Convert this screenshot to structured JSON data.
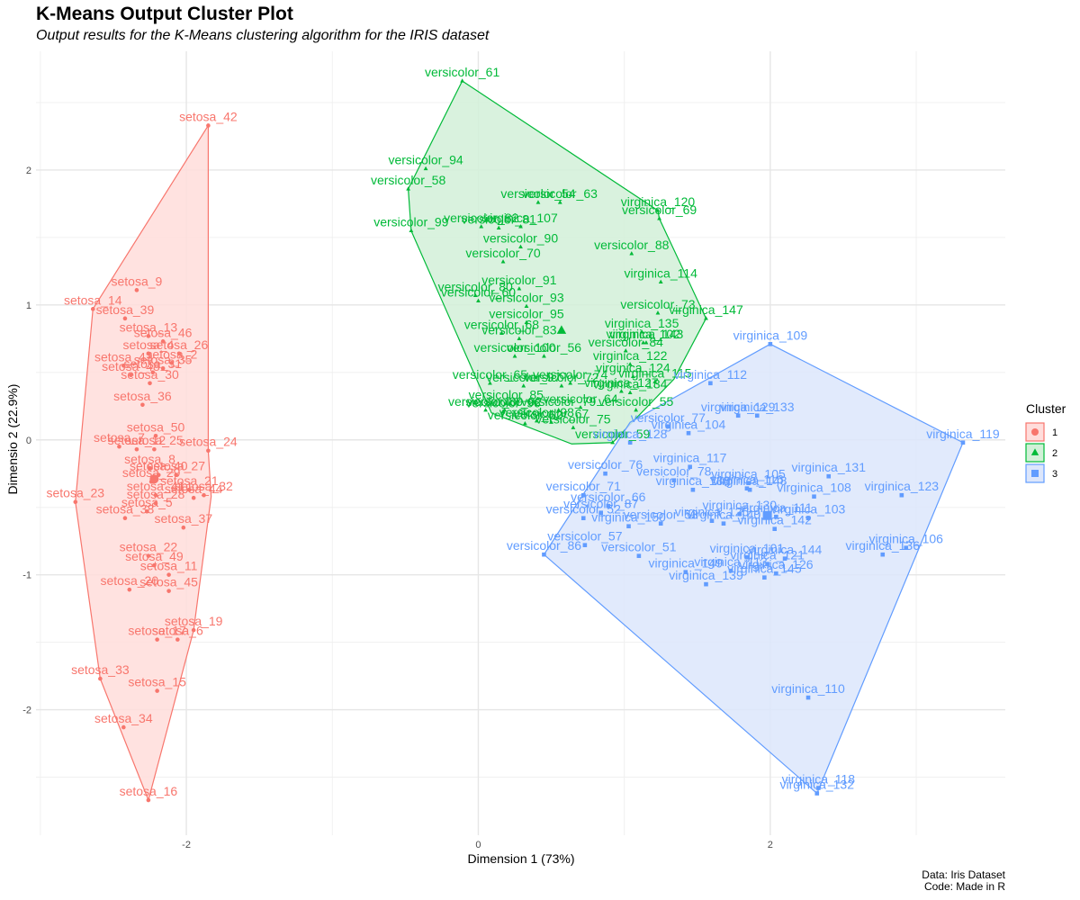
{
  "title": "K-Means Output Cluster Plot",
  "subtitle": "Output results for the K-Means clustering algorithm for the IRIS dataset",
  "caption": [
    "Data: Iris Dataset",
    "Code: Made in R"
  ],
  "chart_data": {
    "type": "scatter",
    "xlabel": "Dimension 1 (73%)",
    "ylabel": "Dimensio 2 (22.9%)",
    "xlim": [
      -3.03,
      3.61
    ],
    "ylim": [
      -2.93,
      2.88
    ],
    "xticks": [
      -2,
      0,
      2
    ],
    "yticks": [
      -2,
      -1,
      0,
      1,
      2
    ],
    "grid": true,
    "legend": {
      "title": "Cluster",
      "position": "right"
    },
    "clusters": [
      {
        "name": "1",
        "color": "#F8766D",
        "fill": "#FFDDDB",
        "shape": "circle",
        "centroid": [
          -2.22,
          -0.29
        ],
        "hull": [
          [
            -1.85,
            2.33
          ],
          [
            -2.64,
            0.97
          ],
          [
            -2.76,
            -0.46
          ],
          [
            -2.59,
            -1.77
          ],
          [
            -2.26,
            -2.67
          ],
          [
            -1.95,
            -1.41
          ],
          [
            -1.83,
            -0.42
          ],
          [
            -1.85,
            -0.08
          ]
        ],
        "points": [
          {
            "label": "setosa_42",
            "x": -1.85,
            "y": 2.33
          },
          {
            "label": "setosa_9",
            "x": -2.34,
            "y": 1.11
          },
          {
            "label": "setosa_14",
            "x": -2.64,
            "y": 0.97
          },
          {
            "label": "setosa_39",
            "x": -2.42,
            "y": 0.9
          },
          {
            "label": "setosa_13",
            "x": -2.26,
            "y": 0.77
          },
          {
            "label": "setosa_46",
            "x": -2.16,
            "y": 0.73
          },
          {
            "label": "setosa_26",
            "x": -2.05,
            "y": 0.64
          },
          {
            "label": "setosa_4",
            "x": -2.26,
            "y": 0.64
          },
          {
            "label": "setosa_43",
            "x": -2.43,
            "y": 0.55
          },
          {
            "label": "setosa_2",
            "x": -2.1,
            "y": 0.57
          },
          {
            "label": "setosa_35",
            "x": -2.16,
            "y": 0.53
          },
          {
            "label": "setosa_31",
            "x": -2.23,
            "y": 0.5
          },
          {
            "label": "setosa_48",
            "x": -2.38,
            "y": 0.48
          },
          {
            "label": "setosa_30",
            "x": -2.25,
            "y": 0.42
          },
          {
            "label": "setosa_36",
            "x": -2.3,
            "y": 0.26
          },
          {
            "label": "setosa_50",
            "x": -2.21,
            "y": 0.03
          },
          {
            "label": "setosa_7",
            "x": -2.46,
            "y": -0.05
          },
          {
            "label": "setosa_12",
            "x": -2.34,
            "y": -0.07
          },
          {
            "label": "setosa_25",
            "x": -2.22,
            "y": -0.07
          },
          {
            "label": "setosa_24",
            "x": -1.85,
            "y": -0.08
          },
          {
            "label": "setosa_8",
            "x": -2.25,
            "y": -0.21
          },
          {
            "label": "setosa_40",
            "x": -2.19,
            "y": -0.26
          },
          {
            "label": "setosa_27",
            "x": -2.07,
            "y": -0.26
          },
          {
            "label": "setosa_29",
            "x": -2.24,
            "y": -0.31
          },
          {
            "label": "setosa_21",
            "x": -1.98,
            "y": -0.37
          },
          {
            "label": "setosa_32",
            "x": -1.88,
            "y": -0.41
          },
          {
            "label": "setosa_23",
            "x": -2.76,
            "y": -0.46
          },
          {
            "label": "setosa_41",
            "x": -2.21,
            "y": -0.41
          },
          {
            "label": "setosa_44",
            "x": -1.95,
            "y": -0.43
          },
          {
            "label": "setosa_28",
            "x": -2.21,
            "y": -0.47
          },
          {
            "label": "setosa_38",
            "x": -2.42,
            "y": -0.58
          },
          {
            "label": "setosa_5",
            "x": -2.27,
            "y": -0.53
          },
          {
            "label": "setosa_37",
            "x": -2.02,
            "y": -0.65
          },
          {
            "label": "setosa_22",
            "x": -2.26,
            "y": -0.86
          },
          {
            "label": "setosa_49",
            "x": -2.22,
            "y": -0.93
          },
          {
            "label": "setosa_11",
            "x": -2.12,
            "y": -1.0
          },
          {
            "label": "setosa_20",
            "x": -2.39,
            "y": -1.11
          },
          {
            "label": "setosa_45",
            "x": -2.12,
            "y": -1.12
          },
          {
            "label": "setosa_19",
            "x": -1.95,
            "y": -1.41
          },
          {
            "label": "setosa_17",
            "x": -2.2,
            "y": -1.48
          },
          {
            "label": "setosa_6",
            "x": -2.06,
            "y": -1.48
          },
          {
            "label": "setosa_33",
            "x": -2.59,
            "y": -1.77
          },
          {
            "label": "setosa_15",
            "x": -2.2,
            "y": -1.86
          },
          {
            "label": "setosa_34",
            "x": -2.43,
            "y": -2.13
          },
          {
            "label": "setosa_16",
            "x": -2.26,
            "y": -2.67
          }
        ]
      },
      {
        "name": "2",
        "color": "#00BA38",
        "fill": "#D2F0D8",
        "shape": "triangle",
        "centroid": [
          0.57,
          0.81
        ],
        "hull": [
          [
            -0.11,
            2.66
          ],
          [
            -0.48,
            1.86
          ],
          [
            -0.46,
            1.55
          ],
          [
            0.09,
            0.2
          ],
          [
            0.64,
            -0.03
          ],
          [
            0.92,
            -0.02
          ],
          [
            1.34,
            0.45
          ],
          [
            1.56,
            0.9
          ],
          [
            1.24,
            1.64
          ],
          [
            1.23,
            1.7
          ]
        ],
        "points": [
          {
            "label": "versicolor_61",
            "x": -0.11,
            "y": 2.66
          },
          {
            "label": "versicolor_94",
            "x": -0.36,
            "y": 2.01
          },
          {
            "label": "versicolor_58",
            "x": -0.48,
            "y": 1.86
          },
          {
            "label": "versicolor_54",
            "x": 0.41,
            "y": 1.76
          },
          {
            "label": "versicolor_63",
            "x": 0.56,
            "y": 1.76
          },
          {
            "label": "virginica_120",
            "x": 1.23,
            "y": 1.7
          },
          {
            "label": "versicolor_69",
            "x": 1.24,
            "y": 1.64
          },
          {
            "label": "versicolor_99",
            "x": -0.46,
            "y": 1.55
          },
          {
            "label": "versicolor_82",
            "x": 0.02,
            "y": 1.58
          },
          {
            "label": "versicolor_81",
            "x": 0.14,
            "y": 1.57
          },
          {
            "label": "virginica_107",
            "x": 0.29,
            "y": 1.58
          },
          {
            "label": "versicolor_90",
            "x": 0.29,
            "y": 1.43
          },
          {
            "label": "versicolor_70",
            "x": 0.17,
            "y": 1.32
          },
          {
            "label": "versicolor_88",
            "x": 1.05,
            "y": 1.38
          },
          {
            "label": "virginica_114",
            "x": 1.25,
            "y": 1.17
          },
          {
            "label": "versicolor_91",
            "x": 0.28,
            "y": 1.12
          },
          {
            "label": "versicolor_80",
            "x": -0.02,
            "y": 1.07
          },
          {
            "label": "versicolor_60",
            "x": 0.0,
            "y": 1.03
          },
          {
            "label": "versicolor_93",
            "x": 0.33,
            "y": 0.99
          },
          {
            "label": "virginica_147",
            "x": 1.56,
            "y": 0.9
          },
          {
            "label": "versicolor_73",
            "x": 1.23,
            "y": 0.94
          },
          {
            "label": "versicolor_95",
            "x": 0.33,
            "y": 0.87
          },
          {
            "label": "virginica_135",
            "x": 1.12,
            "y": 0.8
          },
          {
            "label": "versicolor_68",
            "x": 0.16,
            "y": 0.79
          },
          {
            "label": "versicolor_83",
            "x": 0.28,
            "y": 0.75
          },
          {
            "label": "virginica_102",
            "x": 1.13,
            "y": 0.72
          },
          {
            "label": "virginica_143",
            "x": 1.15,
            "y": 0.72
          },
          {
            "label": "versicolor_84",
            "x": 1.01,
            "y": 0.66
          },
          {
            "label": "versicolor_100",
            "x": 0.25,
            "y": 0.62
          },
          {
            "label": "versicolor_56",
            "x": 0.45,
            "y": 0.62
          },
          {
            "label": "virginica_122",
            "x": 1.04,
            "y": 0.56
          },
          {
            "label": "virginica_124",
            "x": 1.06,
            "y": 0.47
          },
          {
            "label": "virginica_115",
            "x": 1.21,
            "y": 0.43
          },
          {
            "label": "versicolor_65",
            "x": 0.08,
            "y": 0.42
          },
          {
            "label": "versicolor_97",
            "x": 0.31,
            "y": 0.4
          },
          {
            "label": "versicolor_72",
            "x": 0.57,
            "y": 0.4
          },
          {
            "label": "versicolor_74",
            "x": 0.63,
            "y": 0.42
          },
          {
            "label": "virginica_127",
            "x": 0.98,
            "y": 0.36
          },
          {
            "label": "virginica_134",
            "x": 1.04,
            "y": 0.35
          },
          {
            "label": "versicolor_85",
            "x": 0.19,
            "y": 0.27
          },
          {
            "label": "versicolor_89",
            "x": 0.05,
            "y": 0.22
          },
          {
            "label": "versicolor_96",
            "x": 0.17,
            "y": 0.21
          },
          {
            "label": "versicolor_79",
            "x": 0.55,
            "y": 0.22
          },
          {
            "label": "versicolor_64",
            "x": 0.7,
            "y": 0.24
          },
          {
            "label": "versicolor_55",
            "x": 1.08,
            "y": 0.22
          },
          {
            "label": "versicolor_62",
            "x": 0.32,
            "y": 0.12
          },
          {
            "label": "versicolor_75",
            "x": 0.65,
            "y": 0.09
          },
          {
            "label": "versicolor_92",
            "x": 0.18,
            "y": 0.22
          },
          {
            "label": "versicolor_98",
            "x": 0.4,
            "y": 0.14
          },
          {
            "label": "versicolor_67",
            "x": 0.5,
            "y": 0.13
          },
          {
            "label": "versicolor_59",
            "x": 0.92,
            "y": -0.02
          }
        ]
      },
      {
        "name": "3",
        "color": "#619CFF",
        "fill": "#DCE6FB",
        "shape": "square",
        "centroid": [
          1.98,
          -0.56
        ],
        "hull": [
          [
            2.0,
            0.71
          ],
          [
            3.32,
            -0.02
          ],
          [
            2.32,
            -2.62
          ],
          [
            0.45,
            -0.85
          ],
          [
            1.04,
            0.13
          ]
        ],
        "points": [
          {
            "label": "virginica_109",
            "x": 2.0,
            "y": 0.71
          },
          {
            "label": "virginica_112",
            "x": 1.59,
            "y": 0.42
          },
          {
            "label": "virginica_129",
            "x": 1.78,
            "y": 0.18
          },
          {
            "label": "virginica_133",
            "x": 1.91,
            "y": 0.18
          },
          {
            "label": "versicolor_77",
            "x": 1.3,
            "y": 0.1
          },
          {
            "label": "virginica_104",
            "x": 1.44,
            "y": 0.05
          },
          {
            "label": "virginica_119",
            "x": 3.32,
            "y": -0.02
          },
          {
            "label": "virginica_128",
            "x": 1.04,
            "y": -0.02
          },
          {
            "label": "versicolor_76",
            "x": 0.87,
            "y": -0.25
          },
          {
            "label": "virginica_117",
            "x": 1.45,
            "y": -0.2
          },
          {
            "label": "versicolor_78",
            "x": 1.34,
            "y": -0.3
          },
          {
            "label": "virginica_105",
            "x": 1.85,
            "y": -0.32
          },
          {
            "label": "virginica_131",
            "x": 2.4,
            "y": -0.27
          },
          {
            "label": "versicolor_71",
            "x": 0.72,
            "y": -0.41
          },
          {
            "label": "virginica_138",
            "x": 1.47,
            "y": -0.37
          },
          {
            "label": "virginica_148",
            "x": 1.86,
            "y": -0.37
          },
          {
            "label": "virginica_116",
            "x": 1.84,
            "y": -0.36
          },
          {
            "label": "virginica_108",
            "x": 2.3,
            "y": -0.42
          },
          {
            "label": "virginica_123",
            "x": 2.9,
            "y": -0.41
          },
          {
            "label": "versicolor_66",
            "x": 0.89,
            "y": -0.49
          },
          {
            "label": "versicolor_87",
            "x": 0.84,
            "y": -0.54
          },
          {
            "label": "virginica_103",
            "x": 2.26,
            "y": -0.58
          },
          {
            "label": "virginica_130",
            "x": 1.79,
            "y": -0.55
          },
          {
            "label": "virginica_111",
            "x": 2.04,
            "y": -0.57
          },
          {
            "label": "versicolor_52",
            "x": 0.72,
            "y": -0.58
          },
          {
            "label": "versicolor_53",
            "x": 1.25,
            "y": -0.62
          },
          {
            "label": "virginica_150",
            "x": 1.03,
            "y": -0.64
          },
          {
            "label": "virginica_140",
            "x": 1.68,
            "y": -0.62
          },
          {
            "label": "virginica_142",
            "x": 2.03,
            "y": -0.66
          },
          {
            "label": "virginica_125",
            "x": 1.6,
            "y": -0.6
          },
          {
            "label": "versicolor_57",
            "x": 0.73,
            "y": -0.78
          },
          {
            "label": "versicolor_86",
            "x": 0.45,
            "y": -0.85
          },
          {
            "label": "versicolor_51",
            "x": 1.1,
            "y": -0.86
          },
          {
            "label": "virginica_101",
            "x": 1.84,
            "y": -0.87
          },
          {
            "label": "virginica_144",
            "x": 2.1,
            "y": -0.88
          },
          {
            "label": "virginica_106",
            "x": 2.93,
            "y": -0.8
          },
          {
            "label": "virginica_136",
            "x": 2.77,
            "y": -0.85
          },
          {
            "label": "virginica_121",
            "x": 1.98,
            "y": -0.92
          },
          {
            "label": "virginica_149",
            "x": 1.42,
            "y": -0.98
          },
          {
            "label": "virginica_113",
            "x": 1.73,
            "y": -0.97
          },
          {
            "label": "virginica_126",
            "x": 2.04,
            "y": -0.99
          },
          {
            "label": "virginica_145",
            "x": 1.96,
            "y": -1.02
          },
          {
            "label": "virginica_139",
            "x": 1.56,
            "y": -1.07
          },
          {
            "label": "virginica_110",
            "x": 2.26,
            "y": -1.91
          },
          {
            "label": "virginica_118",
            "x": 2.33,
            "y": -2.58
          },
          {
            "label": "virginica_132",
            "x": 2.32,
            "y": -2.62
          }
        ]
      }
    ]
  }
}
